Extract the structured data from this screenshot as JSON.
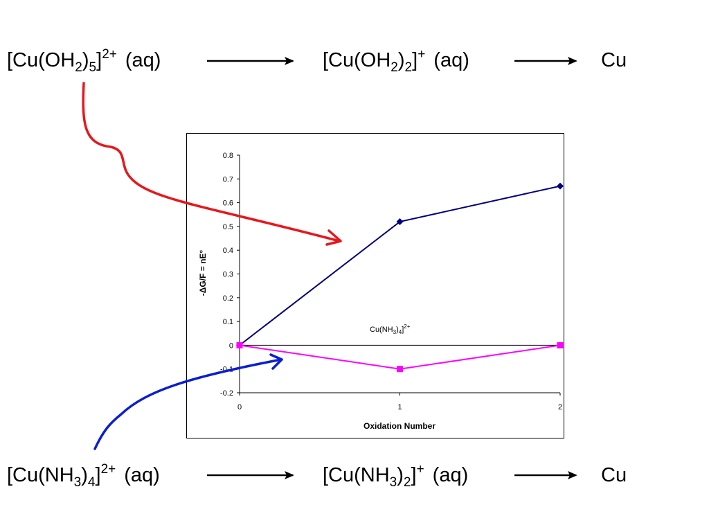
{
  "top_scheme": {
    "reactant": {
      "p1": "[Cu(OH",
      "s1": "2",
      "p2": ")",
      "s2": "5",
      "p3": "]",
      "charge": "2+",
      "state": "(aq)"
    },
    "intermediate": {
      "p1": "[Cu(OH",
      "s1": "2",
      "p2": ")",
      "s2": "2",
      "p3": "]",
      "charge": "+",
      "state": "(aq)"
    },
    "product": "Cu"
  },
  "bottom_scheme": {
    "reactant": {
      "p1": "[Cu(NH",
      "s1": "3",
      "p2": ")",
      "s2": "4",
      "p3": "]",
      "charge": "2+",
      "state": "(aq)"
    },
    "intermediate": {
      "p1": "[Cu(NH",
      "s1": "3",
      "p2": ")",
      "s2": "2",
      "p3": "]",
      "charge": "+",
      "state": "(aq)"
    },
    "product": "Cu"
  },
  "colors": {
    "top_pointer": "#e8161b",
    "bottom_pointer": "#0a1fd0",
    "series_1": "#000080",
    "series_2": "#ff00ff"
  },
  "chart_data": {
    "type": "line",
    "xlabel": "Oxidation Number",
    "ylabel": "-ΔG/F = nE°",
    "xlim": [
      0,
      2
    ],
    "ylim": [
      -0.2,
      0.8
    ],
    "x_ticks": [
      0,
      1,
      2
    ],
    "y_ticks": [
      -0.2,
      -0.1,
      0,
      0.1,
      0.2,
      0.3,
      0.4,
      0.5,
      0.6,
      0.7,
      0.8
    ],
    "grid": false,
    "annotation": {
      "p1": "Cu(NH",
      "s1": "3",
      "p2": ")",
      "s2": "4",
      "p3": "]",
      "charge": "2+"
    },
    "series": [
      {
        "marker": "diamond",
        "color": "#000080",
        "x": [
          0,
          1,
          2
        ],
        "y": [
          0,
          0.52,
          0.67
        ]
      },
      {
        "marker": "square",
        "color": "#ff00ff",
        "x": [
          0,
          1,
          2
        ],
        "y": [
          0,
          -0.1,
          0
        ]
      }
    ]
  }
}
